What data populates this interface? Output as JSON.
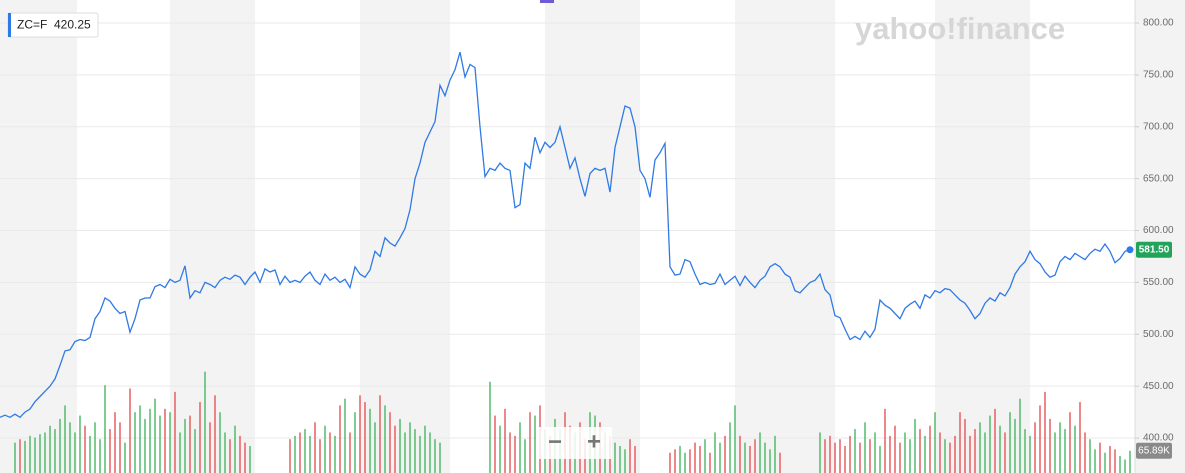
{
  "chart_data": {
    "type": "line",
    "symbol": "ZC=F",
    "symbol_value": "420.25",
    "logo": "yahoo!finance",
    "values": [
      420,
      422,
      420,
      423,
      420,
      425,
      428,
      435,
      440,
      445,
      450,
      457,
      470,
      484,
      485,
      493,
      495,
      494,
      497,
      515,
      522,
      535,
      532,
      525,
      520,
      522,
      502,
      515,
      533,
      535,
      535,
      546,
      548,
      545,
      553,
      550,
      552,
      566,
      535,
      542,
      540,
      550,
      548,
      545,
      552,
      555,
      553,
      557,
      555,
      548,
      555,
      560,
      550,
      563,
      560,
      562,
      548,
      556,
      550,
      552,
      550,
      556,
      560,
      552,
      548,
      558,
      552,
      555,
      550,
      553,
      545,
      565,
      558,
      555,
      562,
      580,
      575,
      593,
      588,
      585,
      593,
      602,
      620,
      650,
      665,
      685,
      695,
      705,
      740,
      730,
      745,
      755,
      772,
      748,
      760,
      757,
      700,
      652,
      660,
      658,
      665,
      660,
      658,
      622,
      625,
      665,
      660,
      690,
      675,
      685,
      680,
      685,
      700,
      680,
      660,
      670,
      650,
      633,
      655,
      660,
      658,
      660,
      637,
      680,
      700,
      720,
      718,
      700,
      658,
      650,
      632,
      668,
      675,
      684,
      565,
      557,
      558,
      572,
      570,
      558,
      548,
      550,
      548,
      549,
      558,
      548,
      552,
      556,
      547,
      556,
      550,
      545,
      552,
      556,
      565,
      568,
      565,
      558,
      555,
      542,
      540,
      545,
      550,
      552,
      558,
      543,
      538,
      518,
      516,
      505,
      495,
      498,
      495,
      503,
      497,
      505,
      533,
      528,
      525,
      520,
      515,
      525,
      529,
      532,
      525,
      538,
      535,
      542,
      540,
      544,
      543,
      538,
      533,
      530,
      523,
      515,
      520,
      530,
      535,
      532,
      540,
      537,
      545,
      558,
      565,
      570,
      580,
      572,
      568,
      560,
      555,
      557,
      570,
      575,
      572,
      578,
      575,
      572,
      578,
      582,
      580,
      587,
      580,
      569,
      573,
      580,
      581.5
    ],
    "last_price_label": "581.50",
    "color": "#2f7ae5",
    "volume": [
      null,
      null,
      null,
      90,
      100,
      95,
      110,
      105,
      115,
      120,
      140,
      130,
      160,
      200,
      150,
      120,
      170,
      140,
      110,
      150,
      100,
      260,
      130,
      180,
      150,
      90,
      250,
      180,
      200,
      160,
      190,
      220,
      170,
      190,
      180,
      240,
      120,
      160,
      170,
      130,
      210,
      300,
      150,
      230,
      180,
      120,
      100,
      140,
      110,
      90,
      80,
      null,
      null,
      null,
      null,
      null,
      null,
      null,
      100,
      110,
      120,
      130,
      110,
      150,
      100,
      140,
      120,
      110,
      200,
      220,
      120,
      180,
      230,
      210,
      190,
      150,
      230,
      200,
      180,
      140,
      160,
      120,
      150,
      130,
      110,
      140,
      120,
      100,
      90,
      null,
      null,
      null,
      null,
      null,
      null,
      null,
      null,
      null,
      270,
      170,
      140,
      190,
      120,
      110,
      150,
      100,
      180,
      170,
      200,
      130,
      110,
      160,
      130,
      180,
      140,
      120,
      150,
      100,
      180,
      170,
      150,
      120,
      110,
      90,
      80,
      70,
      100,
      80,
      null,
      null,
      null,
      null,
      null,
      null,
      60,
      70,
      80,
      60,
      70,
      90,
      80,
      100,
      60,
      120,
      90,
      110,
      150,
      200,
      110,
      90,
      80,
      100,
      120,
      90,
      70,
      110,
      60,
      null,
      null,
      null,
      null,
      null,
      null,
      null,
      120,
      100,
      110,
      90,
      100,
      80,
      110,
      130,
      90,
      150,
      100,
      120,
      80,
      190,
      110,
      140,
      90,
      120,
      100,
      160,
      130,
      110,
      140,
      180,
      120,
      100,
      90,
      110,
      180,
      160,
      110,
      130,
      150,
      120,
      170,
      190,
      140,
      120,
      180,
      160,
      220,
      130,
      110,
      150,
      200,
      240,
      160,
      120,
      150,
      130,
      180,
      140,
      210,
      120,
      100,
      70,
      90,
      60,
      80,
      70,
      50,
      40,
      65.89
    ],
    "volume_last_label": "65.89K",
    "volume_ylim": [
      0,
      1400
    ],
    "up_color": "#5fbf77",
    "down_color": "#e86a6d",
    "ylim": [
      366.3,
      822.2
    ],
    "yticks": [
      {
        "value": 400,
        "label": "400.00"
      },
      {
        "value": 450,
        "label": "450.00"
      },
      {
        "value": 500,
        "label": "500.00"
      },
      {
        "value": 550,
        "label": "550.00"
      },
      {
        "value": 600,
        "label": "600.00"
      },
      {
        "value": 650,
        "label": "650.00"
      },
      {
        "value": 700,
        "label": "700.00"
      },
      {
        "value": 750,
        "label": "750.00"
      },
      {
        "value": 800,
        "label": "800.00"
      }
    ],
    "grid": true,
    "zoom_out": "−",
    "zoom_in": "+"
  }
}
